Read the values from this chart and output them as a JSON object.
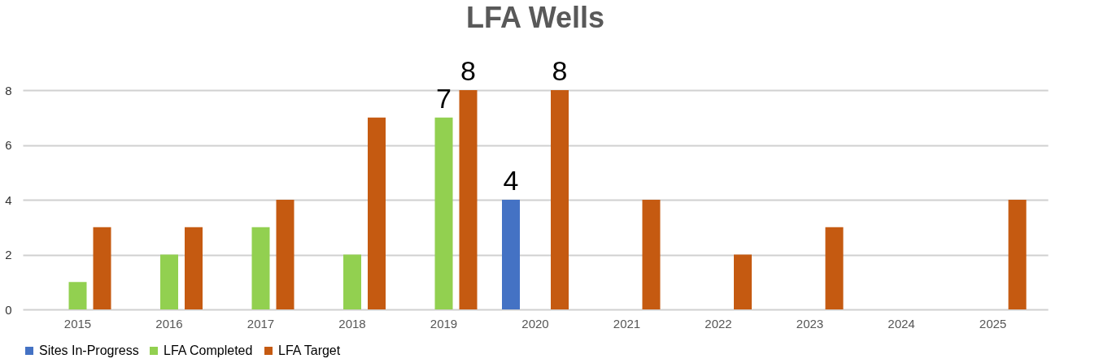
{
  "chart_data": {
    "type": "bar",
    "title": "LFA Wells",
    "categories": [
      "2015",
      "2016",
      "2017",
      "2018",
      "2019",
      "2020",
      "2021",
      "2022",
      "2023",
      "2024",
      "2025"
    ],
    "series": [
      {
        "name": "Sites In-Progress",
        "color": "#4472c4",
        "values": [
          null,
          null,
          null,
          null,
          null,
          4,
          null,
          null,
          null,
          null,
          null
        ],
        "value_labels": [
          null,
          null,
          null,
          null,
          null,
          "4",
          null,
          null,
          null,
          null,
          null
        ]
      },
      {
        "name": "LFA Completed",
        "color": "#92d050",
        "values": [
          1,
          2,
          3,
          2,
          7,
          null,
          null,
          null,
          null,
          null,
          null
        ],
        "value_labels": [
          null,
          null,
          null,
          null,
          "7",
          null,
          null,
          null,
          null,
          null,
          null
        ]
      },
      {
        "name": "LFA Target",
        "color": "#c55a11",
        "values": [
          3,
          3,
          4,
          7,
          8,
          8,
          4,
          2,
          3,
          null,
          4
        ],
        "value_labels": [
          null,
          null,
          null,
          null,
          "8",
          "8",
          null,
          null,
          null,
          null,
          null
        ]
      }
    ],
    "ylim": [
      0,
      8
    ],
    "yticks": [
      0,
      2,
      4,
      6,
      8
    ],
    "grid": "y",
    "legend": "bottom"
  }
}
